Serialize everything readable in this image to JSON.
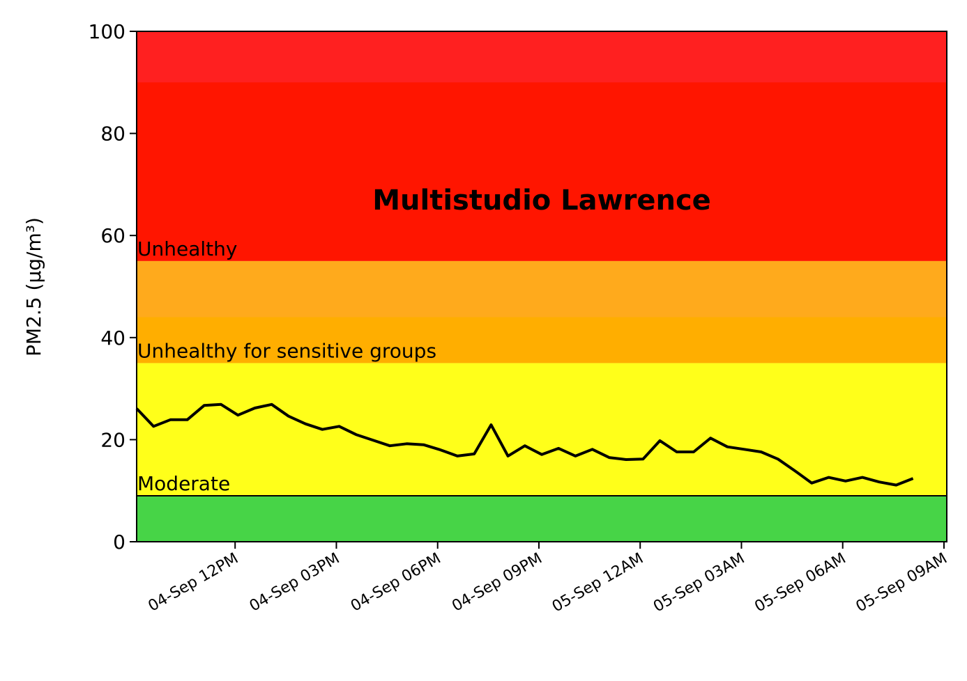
{
  "chart_data": {
    "type": "line",
    "title": "Multistudio Lawrence",
    "ylabel": "PM2.5 (µg/m³)",
    "ylim": [
      0,
      100
    ],
    "yticks": [
      0,
      20,
      40,
      60,
      80,
      100
    ],
    "xlim": [
      "04-Sep 09:05",
      "05-Sep 09:05"
    ],
    "xticks": [
      {
        "value": "04-Sep 12:00",
        "label": "04-Sep 12PM"
      },
      {
        "value": "04-Sep 15:00",
        "label": "04-Sep 03PM"
      },
      {
        "value": "04-Sep 18:00",
        "label": "04-Sep 06PM"
      },
      {
        "value": "04-Sep 21:00",
        "label": "04-Sep 09PM"
      },
      {
        "value": "05-Sep 00:00",
        "label": "05-Sep 12AM"
      },
      {
        "value": "05-Sep 03:00",
        "label": "05-Sep 03AM"
      },
      {
        "value": "05-Sep 06:00",
        "label": "05-Sep 06AM"
      },
      {
        "value": "05-Sep 09:00",
        "label": "05-Sep 09AM"
      }
    ],
    "bands": [
      {
        "from": 0,
        "to": 9,
        "color": "#47d447"
      },
      {
        "from": 9,
        "to": 35,
        "color": "#ffff1a",
        "label": "Moderate"
      },
      {
        "from": 35,
        "to": 55,
        "color": "#ffae00",
        "label": "Unhealthy for sensitive groups"
      },
      {
        "from": 44,
        "to": 55,
        "color": "#ffaa1c"
      },
      {
        "from": 55,
        "to": 100,
        "color": "#ff1500",
        "label": "Unhealthy"
      },
      {
        "from": 90,
        "to": 100,
        "color": "#ff2020"
      }
    ],
    "series": [
      {
        "name": "PM2.5",
        "color": "#000000",
        "x": [
          "04-Sep 09:05",
          "04-Sep 09:35",
          "04-Sep 10:05",
          "04-Sep 10:35",
          "04-Sep 11:05",
          "04-Sep 11:35",
          "04-Sep 12:05",
          "04-Sep 12:35",
          "04-Sep 13:05",
          "04-Sep 13:35",
          "04-Sep 14:05",
          "04-Sep 14:35",
          "04-Sep 15:05",
          "04-Sep 15:35",
          "04-Sep 16:05",
          "04-Sep 16:35",
          "04-Sep 17:05",
          "04-Sep 17:35",
          "04-Sep 18:05",
          "04-Sep 18:35",
          "04-Sep 19:05",
          "04-Sep 19:35",
          "04-Sep 20:05",
          "04-Sep 20:35",
          "04-Sep 21:05",
          "04-Sep 21:35",
          "04-Sep 22:05",
          "04-Sep 22:35",
          "04-Sep 23:05",
          "04-Sep 23:35",
          "05-Sep 00:05",
          "05-Sep 00:35",
          "05-Sep 01:05",
          "05-Sep 01:35",
          "05-Sep 02:05",
          "05-Sep 02:35",
          "05-Sep 03:05",
          "05-Sep 03:35",
          "05-Sep 04:05",
          "05-Sep 04:35",
          "05-Sep 05:05",
          "05-Sep 05:35",
          "05-Sep 06:05",
          "05-Sep 06:35",
          "05-Sep 07:05",
          "05-Sep 07:35",
          "05-Sep 08:05"
        ],
        "values": [
          26.1,
          22.6,
          23.9,
          23.9,
          26.7,
          26.9,
          24.8,
          26.2,
          26.9,
          24.6,
          23.1,
          22.0,
          22.6,
          21.0,
          19.9,
          18.8,
          19.2,
          19.0,
          18.0,
          16.8,
          17.2,
          22.9,
          16.8,
          18.8,
          17.1,
          18.3,
          16.8,
          18.1,
          16.5,
          16.1,
          16.2,
          19.8,
          17.6,
          17.6,
          20.3,
          18.6,
          18.1,
          17.6,
          16.2,
          13.9,
          11.5,
          12.6,
          11.9,
          12.6,
          11.7,
          11.1,
          12.4
        ]
      }
    ]
  }
}
